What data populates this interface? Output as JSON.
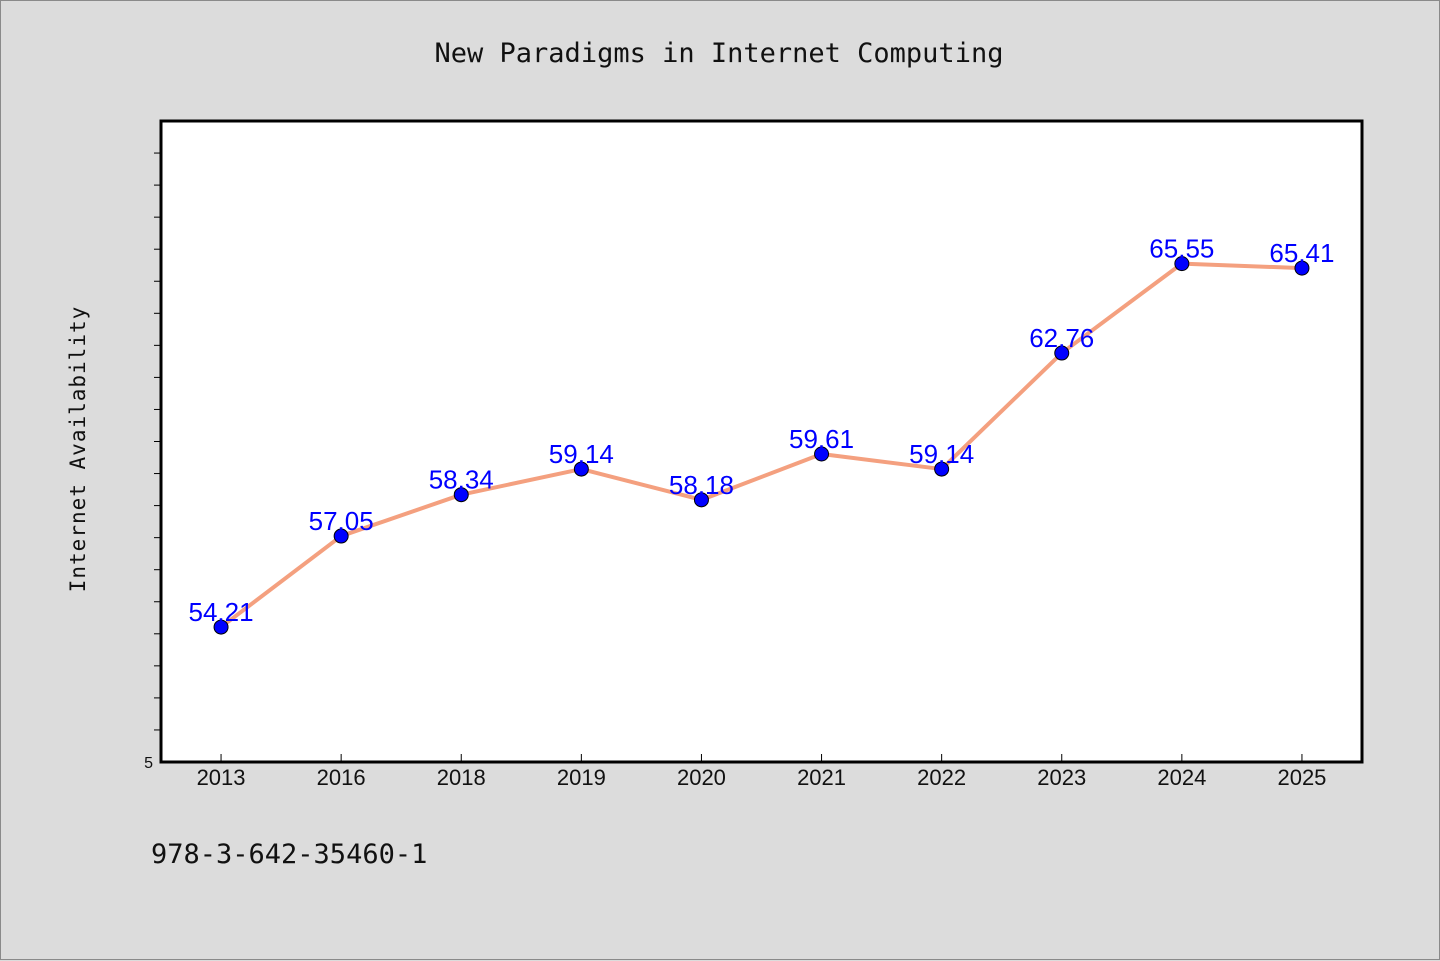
{
  "footer": {
    "isbn": "978-3-642-35460-1"
  },
  "chart_data": {
    "type": "line",
    "title": "New Paradigms in Internet Computing",
    "xlabel": "",
    "ylabel": "Internet Availability",
    "categories": [
      "2013",
      "2016",
      "2018",
      "2019",
      "2020",
      "2021",
      "2022",
      "2023",
      "2024",
      "2025"
    ],
    "series": [
      {
        "values": [
          54.21,
          57.05,
          58.34,
          59.14,
          58.18,
          59.61,
          59.14,
          62.76,
          65.55,
          65.41
        ],
        "line_color": "#f4a07f",
        "marker_color": "#0000ff"
      }
    ],
    "ylim": [
      50.0,
      70.0
    ],
    "y_tick_labels": [
      {
        "value": 50.0,
        "label": "5"
      }
    ],
    "grid": false,
    "legend": "none",
    "label_color": "#0000ff"
  }
}
